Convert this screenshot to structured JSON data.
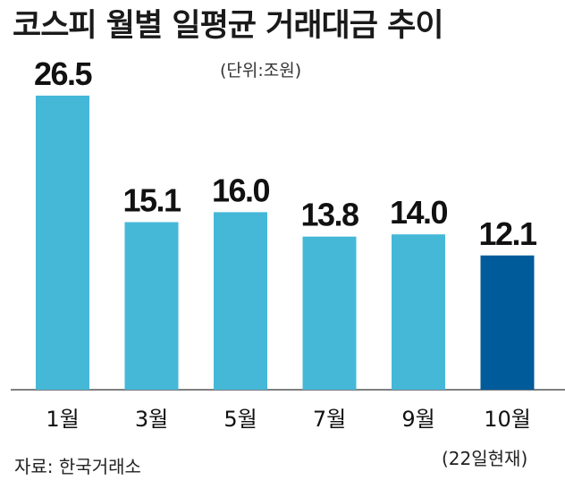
{
  "chart_data": {
    "type": "bar",
    "title": "코스피 월별 일평균 거래대금 추이",
    "unit_label": "(단위:조원)",
    "categories": [
      "1월",
      "3월",
      "5월",
      "7월",
      "9월",
      "10월"
    ],
    "values": [
      26.5,
      15.1,
      16.0,
      13.8,
      14.0,
      12.1
    ],
    "value_labels": [
      "26.5",
      "15.1",
      "16.0",
      "13.8",
      "14.0",
      "12.1"
    ],
    "colors": [
      "#45b8d8",
      "#45b8d8",
      "#45b8d8",
      "#45b8d8",
      "#45b8d8",
      "#005b9a"
    ],
    "ylim": [
      0,
      26.5
    ],
    "grid": false,
    "legend": "none",
    "source": "자료: 한국거래소",
    "note": "(22일현재)"
  }
}
